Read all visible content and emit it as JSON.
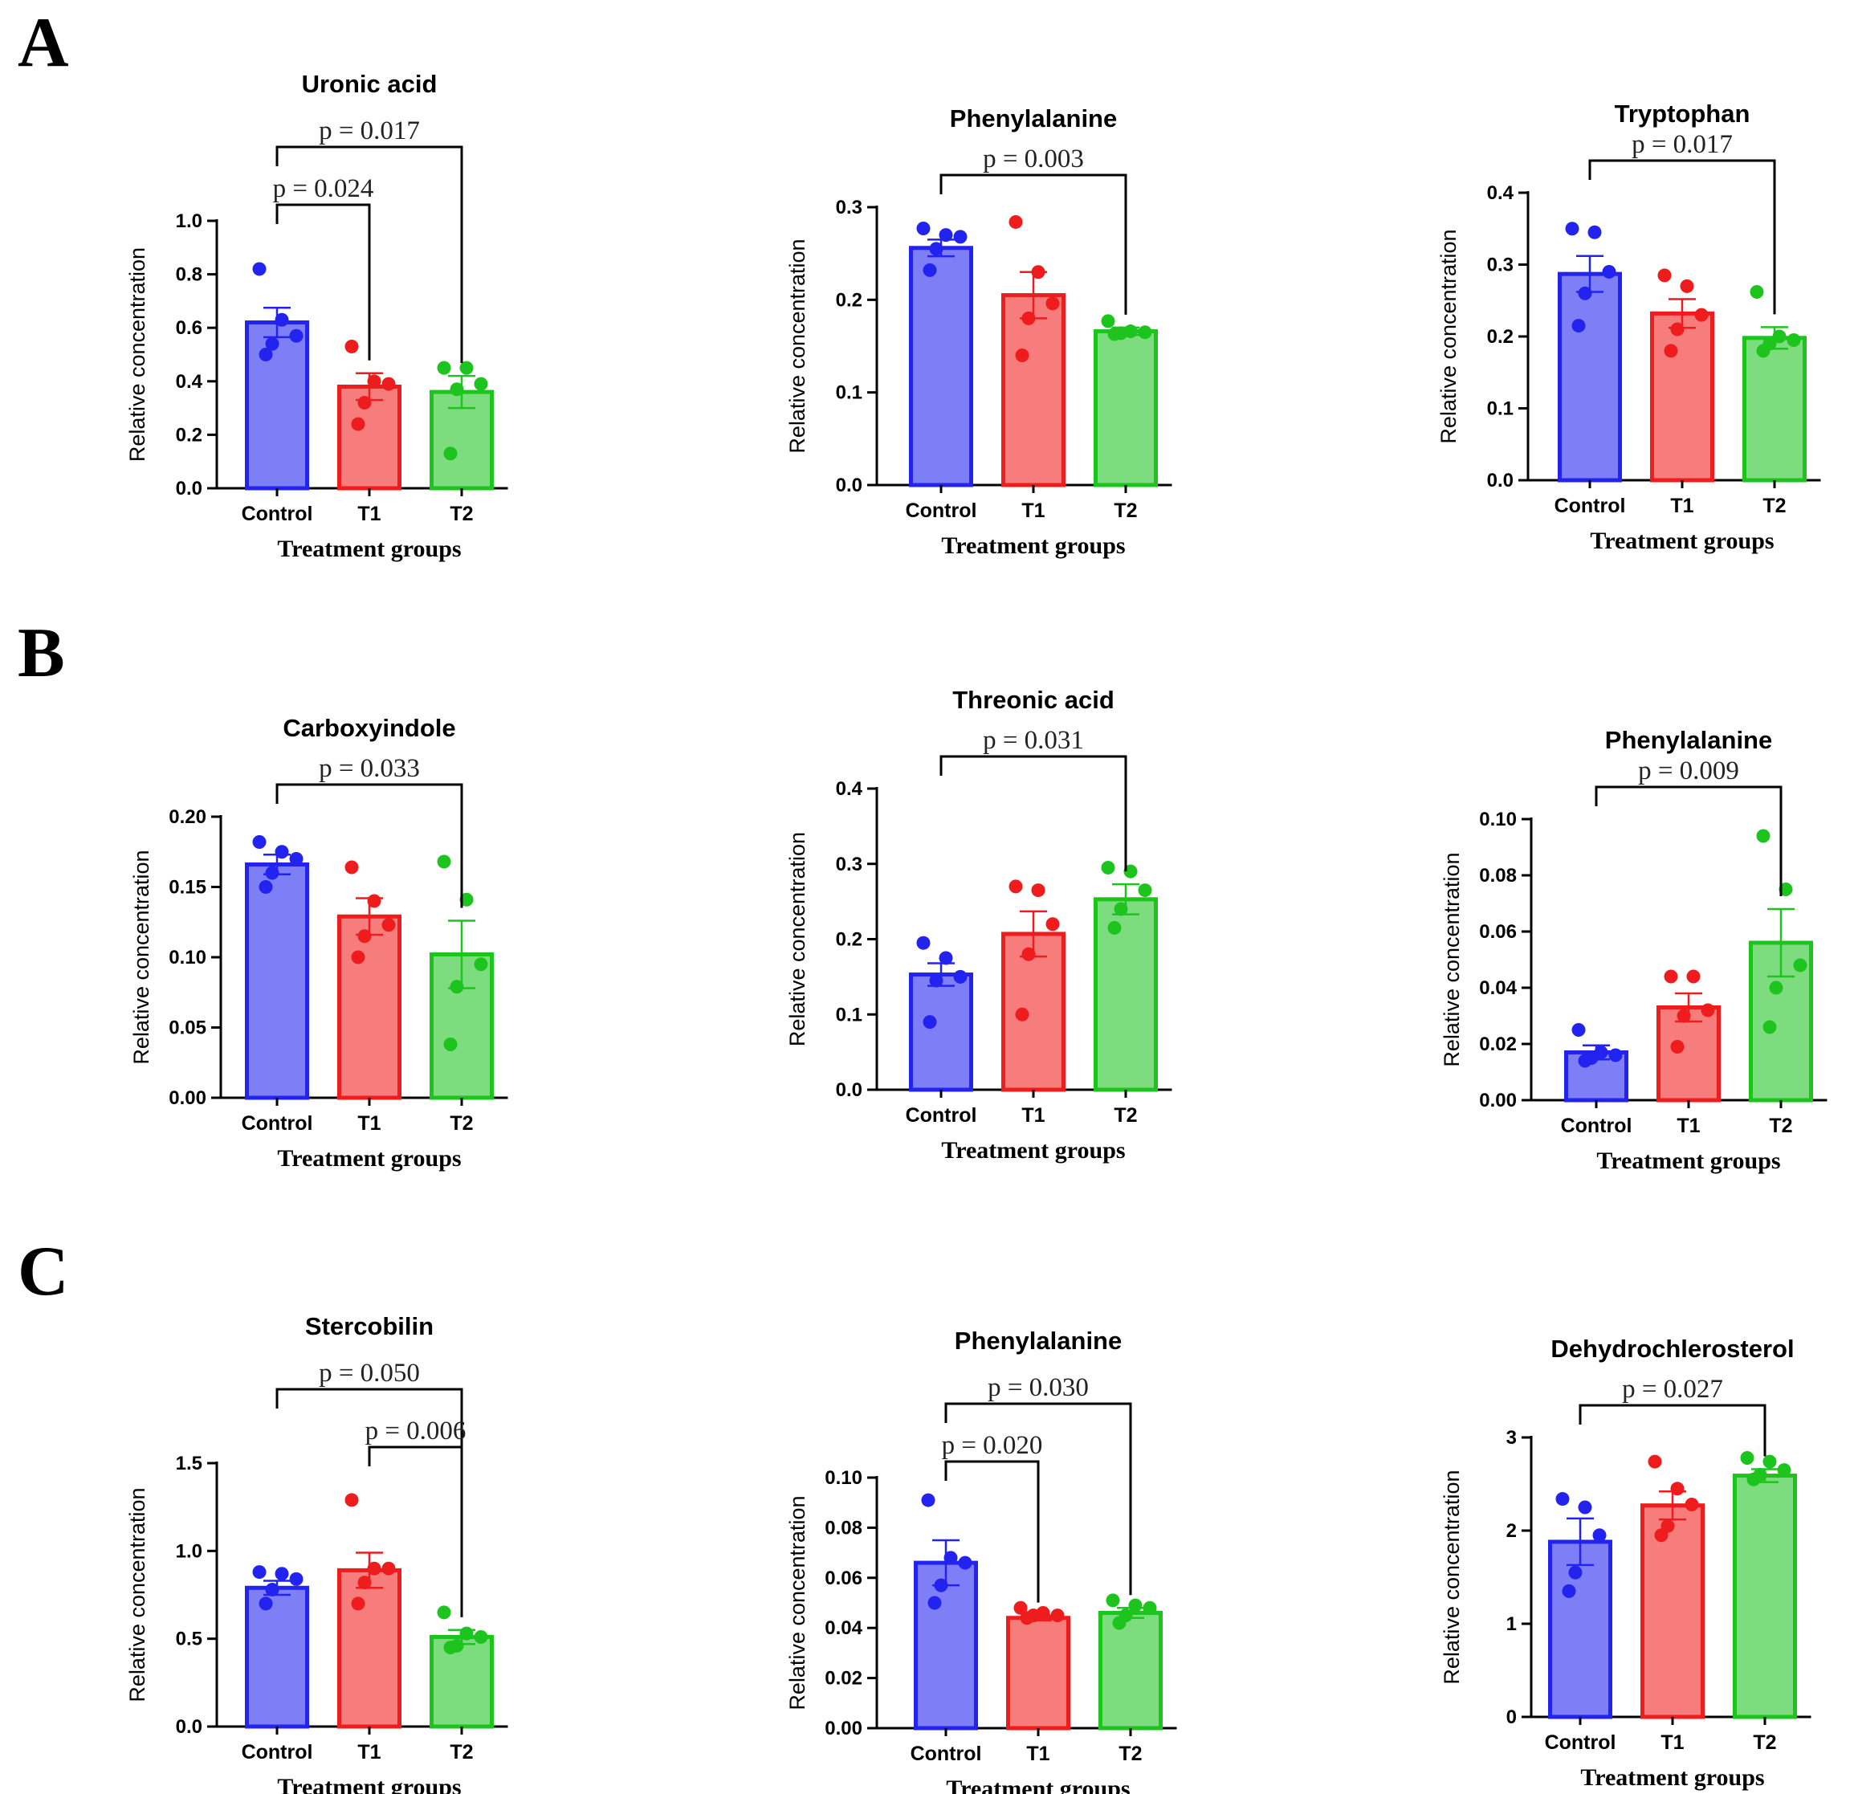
{
  "panels": [
    {
      "letter": "A"
    },
    {
      "letter": "B"
    },
    {
      "letter": "C"
    }
  ],
  "colors": {
    "groups": [
      "#2323f0",
      "#ee1c1c",
      "#1ec41e"
    ],
    "fills": [
      "#7e7ef6",
      "#f77c7c",
      "#7ddc7d"
    ]
  },
  "chart_data": [
    {
      "type": "bar",
      "panel": "A",
      "title": "Uronic acid",
      "ylabel": "Relative concentration",
      "xlabel": "Treatment groups",
      "categories": [
        "Control",
        "T1",
        "T2"
      ],
      "ylim": [
        0,
        1.0
      ],
      "yticks": [
        "0.0",
        "0.2",
        "0.4",
        "0.6",
        "0.8",
        "1.0"
      ],
      "values": [
        0.62,
        0.38,
        0.36
      ],
      "sem": [
        0.055,
        0.05,
        0.06
      ],
      "points": [
        [
          0.82,
          0.63,
          0.57,
          0.54,
          0.5
        ],
        [
          0.53,
          0.4,
          0.39,
          0.32,
          0.24
        ],
        [
          0.45,
          0.45,
          0.39,
          0.37,
          0.13
        ]
      ],
      "comparisons": [
        {
          "from": 0,
          "to": 2,
          "label": "p = 0.017"
        },
        {
          "from": 0,
          "to": 1,
          "label": "p = 0.024"
        }
      ]
    },
    {
      "type": "bar",
      "panel": "A",
      "title": "Phenylalanine",
      "ylabel": "Relative concentration",
      "xlabel": "Treatment groups",
      "categories": [
        "Control",
        "T1",
        "T2"
      ],
      "ylim": [
        0,
        0.3
      ],
      "yticks": [
        "0.0",
        "0.1",
        "0.2",
        "0.3"
      ],
      "values": [
        0.256,
        0.205,
        0.166
      ],
      "sem": [
        0.009,
        0.025,
        0.004
      ],
      "points": [
        [
          0.277,
          0.27,
          0.268,
          0.255,
          0.232
        ],
        [
          0.284,
          0.23,
          0.196,
          0.18,
          0.14
        ],
        [
          0.177,
          0.166,
          0.165,
          0.164,
          0.163
        ]
      ],
      "comparisons": [
        {
          "from": 0,
          "to": 2,
          "label": "p = 0.003"
        }
      ]
    },
    {
      "type": "bar",
      "panel": "A",
      "title": "Tryptophan",
      "ylabel": "Relative concentration",
      "xlabel": "Treatment groups",
      "categories": [
        "Control",
        "T1",
        "T2"
      ],
      "ylim": [
        0,
        0.4
      ],
      "yticks": [
        "0.0",
        "0.1",
        "0.2",
        "0.3",
        "0.4"
      ],
      "values": [
        0.287,
        0.232,
        0.198
      ],
      "sem": [
        0.025,
        0.02,
        0.015
      ],
      "points": [
        [
          0.35,
          0.345,
          0.29,
          0.26,
          0.215
        ],
        [
          0.285,
          0.27,
          0.23,
          0.21,
          0.18
        ],
        [
          0.262,
          0.2,
          0.195,
          0.19,
          0.18
        ]
      ],
      "comparisons": [
        {
          "from": 0,
          "to": 2,
          "label": "p = 0.017"
        }
      ]
    },
    {
      "type": "bar",
      "panel": "B",
      "title": "Carboxyindole",
      "ylabel": "Relative concentration",
      "xlabel": "Treatment groups",
      "categories": [
        "Control",
        "T1",
        "T2"
      ],
      "ylim": [
        0,
        0.2
      ],
      "yticks": [
        "0.00",
        "0.05",
        "0.10",
        "0.15",
        "0.20"
      ],
      "values": [
        0.166,
        0.129,
        0.102
      ],
      "sem": [
        0.007,
        0.013,
        0.024
      ],
      "points": [
        [
          0.182,
          0.175,
          0.17,
          0.16,
          0.15
        ],
        [
          0.164,
          0.14,
          0.123,
          0.115,
          0.1
        ],
        [
          0.168,
          0.141,
          0.095,
          0.079,
          0.038
        ]
      ],
      "comparisons": [
        {
          "from": 0,
          "to": 2,
          "label": "p = 0.033"
        }
      ]
    },
    {
      "type": "bar",
      "panel": "B",
      "title": "Threonic acid",
      "ylabel": "Relative concentration",
      "xlabel": "Treatment groups",
      "categories": [
        "Control",
        "T1",
        "T2"
      ],
      "ylim": [
        0,
        0.4
      ],
      "yticks": [
        "0.0",
        "0.1",
        "0.2",
        "0.3",
        "0.4"
      ],
      "values": [
        0.153,
        0.207,
        0.253
      ],
      "sem": [
        0.015,
        0.03,
        0.02
      ],
      "points": [
        [
          0.195,
          0.175,
          0.15,
          0.145,
          0.09
        ],
        [
          0.27,
          0.265,
          0.22,
          0.18,
          0.1
        ],
        [
          0.295,
          0.29,
          0.265,
          0.24,
          0.215
        ]
      ],
      "comparisons": [
        {
          "from": 0,
          "to": 2,
          "label": "p = 0.031"
        }
      ]
    },
    {
      "type": "bar",
      "panel": "B",
      "title": "Phenylalanine",
      "ylabel": "Relative concentration",
      "xlabel": "Treatment groups",
      "categories": [
        "Control",
        "T1",
        "T2"
      ],
      "ylim": [
        0,
        0.1
      ],
      "yticks": [
        "0.00",
        "0.02",
        "0.04",
        "0.06",
        "0.08",
        "0.10"
      ],
      "values": [
        0.017,
        0.033,
        0.056
      ],
      "sem": [
        0.0025,
        0.005,
        0.012
      ],
      "points": [
        [
          0.025,
          0.017,
          0.016,
          0.015,
          0.014
        ],
        [
          0.044,
          0.044,
          0.032,
          0.03,
          0.019
        ],
        [
          0.094,
          0.075,
          0.048,
          0.04,
          0.026
        ]
      ],
      "comparisons": [
        {
          "from": 0,
          "to": 2,
          "label": "p = 0.009"
        }
      ]
    },
    {
      "type": "bar",
      "panel": "C",
      "title": "Stercobilin",
      "ylabel": "Relative concentration",
      "xlabel": "Treatment groups",
      "categories": [
        "Control",
        "T1",
        "T2"
      ],
      "ylim": [
        0,
        1.5
      ],
      "yticks": [
        "0.0",
        "0.5",
        "1.0",
        "1.5"
      ],
      "values": [
        0.79,
        0.89,
        0.51
      ],
      "sem": [
        0.04,
        0.1,
        0.04
      ],
      "points": [
        [
          0.88,
          0.87,
          0.84,
          0.78,
          0.7
        ],
        [
          1.29,
          0.9,
          0.9,
          0.82,
          0.7
        ],
        [
          0.65,
          0.53,
          0.51,
          0.46,
          0.45
        ]
      ],
      "comparisons": [
        {
          "from": 0,
          "to": 2,
          "label": "p = 0.050"
        },
        {
          "from": 1,
          "to": 2,
          "label": "p = 0.006"
        }
      ]
    },
    {
      "type": "bar",
      "panel": "C",
      "title": "Phenylalanine",
      "ylabel": "Relative concentration",
      "xlabel": "Treatment groups",
      "categories": [
        "Control",
        "T1",
        "T2"
      ],
      "ylim": [
        0,
        0.1
      ],
      "yticks": [
        "0.00",
        "0.02",
        "0.04",
        "0.06",
        "0.08",
        "0.10"
      ],
      "values": [
        0.066,
        0.044,
        0.046
      ],
      "sem": [
        0.009,
        0.001,
        0.002
      ],
      "points": [
        [
          0.091,
          0.068,
          0.066,
          0.057,
          0.05
        ],
        [
          0.048,
          0.046,
          0.045,
          0.045,
          0.044
        ],
        [
          0.051,
          0.049,
          0.048,
          0.045,
          0.042
        ]
      ],
      "comparisons": [
        {
          "from": 0,
          "to": 2,
          "label": "p = 0.030"
        },
        {
          "from": 0,
          "to": 1,
          "label": "p = 0.020"
        }
      ]
    },
    {
      "type": "bar",
      "panel": "C",
      "title": "Dehydrochlerosterol",
      "ylabel": "Relative concentration",
      "xlabel": "Treatment groups",
      "categories": [
        "Control",
        "T1",
        "T2"
      ],
      "ylim": [
        0,
        3
      ],
      "yticks": [
        "0",
        "1",
        "2",
        "3"
      ],
      "values": [
        1.88,
        2.27,
        2.59
      ],
      "sem": [
        0.25,
        0.15,
        0.07
      ],
      "points": [
        [
          2.34,
          2.25,
          1.95,
          1.55,
          1.35
        ],
        [
          2.74,
          2.45,
          2.28,
          2.05,
          1.95
        ],
        [
          2.78,
          2.74,
          2.65,
          2.6,
          2.55
        ]
      ],
      "comparisons": [
        {
          "from": 0,
          "to": 2,
          "label": "p = 0.027"
        }
      ]
    }
  ]
}
